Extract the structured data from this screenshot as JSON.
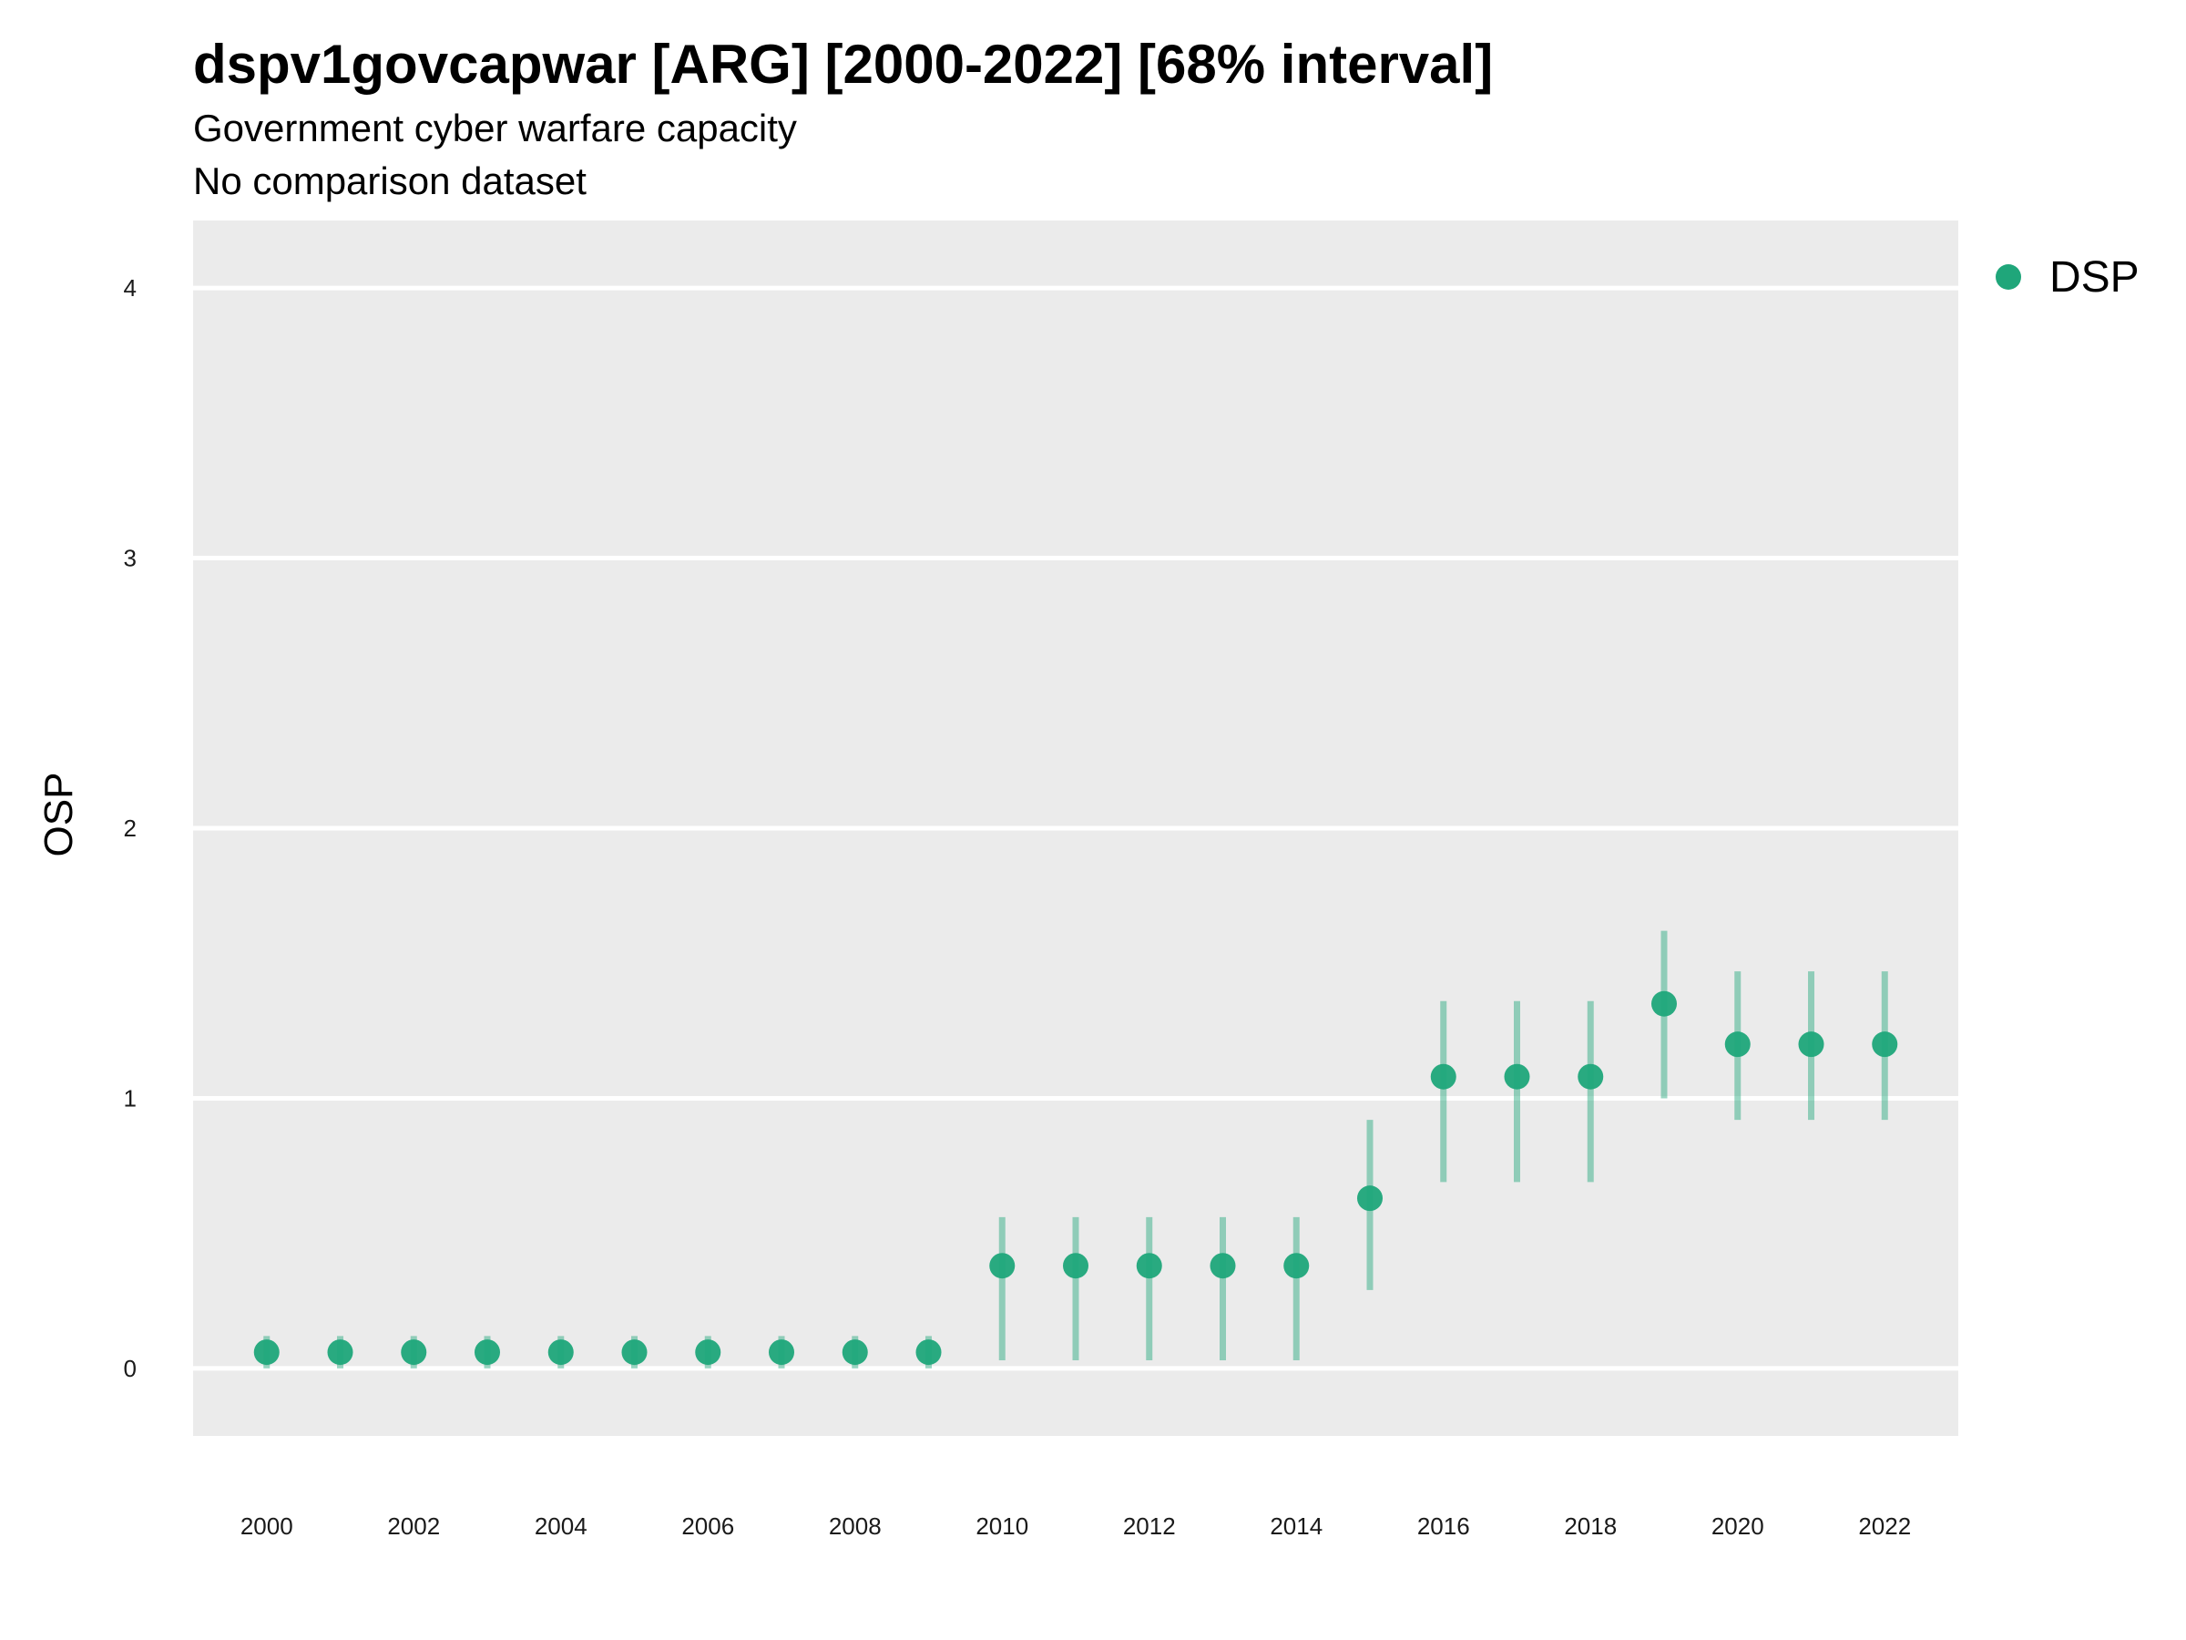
{
  "chart_data": {
    "type": "scatter",
    "title": "dspv1govcapwar [ARG] [2000-2022] [68% interval]",
    "subtitle": "Government cyber warfare capacity",
    "caption": "No comparison dataset",
    "xlabel": "",
    "ylabel": "OSP",
    "xlim": [
      1999,
      2023
    ],
    "ylim": [
      -0.25,
      4.25
    ],
    "x_ticks": [
      2000,
      2002,
      2004,
      2006,
      2008,
      2010,
      2012,
      2014,
      2016,
      2018,
      2020,
      2022
    ],
    "y_ticks": [
      0,
      1,
      2,
      3,
      4
    ],
    "grid": true,
    "legend_position": "top-right",
    "series": [
      {
        "name": "DSP",
        "color": "#1fa67a",
        "x": [
          2000,
          2001,
          2002,
          2003,
          2004,
          2005,
          2006,
          2007,
          2008,
          2009,
          2010,
          2011,
          2012,
          2013,
          2014,
          2015,
          2016,
          2017,
          2018,
          2019,
          2020,
          2021,
          2022
        ],
        "y": [
          0.06,
          0.06,
          0.06,
          0.06,
          0.06,
          0.06,
          0.06,
          0.06,
          0.06,
          0.06,
          0.38,
          0.38,
          0.38,
          0.38,
          0.38,
          0.63,
          1.08,
          1.08,
          1.08,
          1.35,
          1.2,
          1.2,
          1.2
        ],
        "lower": [
          0.0,
          0.0,
          0.0,
          0.0,
          0.0,
          0.0,
          0.0,
          0.0,
          0.0,
          0.0,
          0.03,
          0.03,
          0.03,
          0.03,
          0.03,
          0.29,
          0.69,
          0.69,
          0.69,
          1.0,
          0.92,
          0.92,
          0.92
        ],
        "upper": [
          0.12,
          0.12,
          0.12,
          0.12,
          0.12,
          0.12,
          0.12,
          0.12,
          0.12,
          0.12,
          0.56,
          0.56,
          0.56,
          0.56,
          0.56,
          0.92,
          1.36,
          1.36,
          1.36,
          1.62,
          1.47,
          1.47,
          1.47
        ]
      }
    ]
  }
}
